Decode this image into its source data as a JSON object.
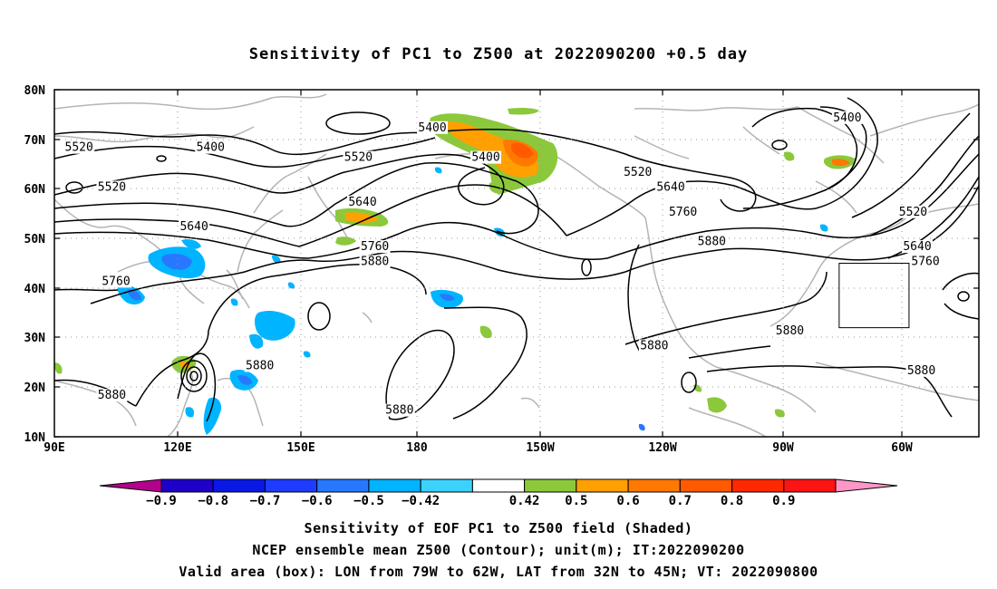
{
  "title": "Sensitivity of PC1 to Z500 at 2022090200 +0.5 day",
  "map": {
    "lat_ticks": [
      "80N",
      "70N",
      "60N",
      "50N",
      "40N",
      "30N",
      "20N",
      "10N"
    ],
    "lon_ticks": [
      "90E",
      "120E",
      "150E",
      "180",
      "150W",
      "120W",
      "90W",
      "60W"
    ],
    "lon_range": [
      90,
      315
    ],
    "lat_range": [
      10,
      80
    ],
    "contour_labels": [
      {
        "text": "5520",
        "lon": 96,
        "lat": 68
      },
      {
        "text": "5400",
        "lon": 128,
        "lat": 68
      },
      {
        "text": "5400",
        "lon": 182,
        "lat": 72
      },
      {
        "text": "5400",
        "lon": 195,
        "lat": 66
      },
      {
        "text": "5400",
        "lon": 283,
        "lat": 74
      },
      {
        "text": "5520",
        "lon": 104,
        "lat": 60
      },
      {
        "text": "5520",
        "lon": 164,
        "lat": 66
      },
      {
        "text": "5520",
        "lon": 232,
        "lat": 63
      },
      {
        "text": "5520",
        "lon": 299,
        "lat": 55
      },
      {
        "text": "5640",
        "lon": 124,
        "lat": 52
      },
      {
        "text": "5640",
        "lon": 165,
        "lat": 57
      },
      {
        "text": "5640",
        "lon": 240,
        "lat": 60
      },
      {
        "text": "5640",
        "lon": 300,
        "lat": 48
      },
      {
        "text": "5760",
        "lon": 105,
        "lat": 41
      },
      {
        "text": "5760",
        "lon": 168,
        "lat": 48
      },
      {
        "text": "5760",
        "lon": 243,
        "lat": 55
      },
      {
        "text": "5760",
        "lon": 302,
        "lat": 45
      },
      {
        "text": "5880",
        "lon": 168,
        "lat": 45
      },
      {
        "text": "5880",
        "lon": 250,
        "lat": 49
      },
      {
        "text": "5880",
        "lon": 236,
        "lat": 28
      },
      {
        "text": "5880",
        "lon": 174,
        "lat": 15
      },
      {
        "text": "5880",
        "lon": 104,
        "lat": 18
      },
      {
        "text": "5880",
        "lon": 140,
        "lat": 24
      },
      {
        "text": "5880",
        "lon": 269,
        "lat": 31
      },
      {
        "text": "5880",
        "lon": 301,
        "lat": 23
      }
    ],
    "valid_box": {
      "lon_min": 281,
      "lon_max": 298,
      "lat_min": 32,
      "lat_max": 45
    },
    "shading_colors": {
      "neg_0.9": "#1e00c8",
      "neg_0.8": "#0a18e6",
      "neg_0.7": "#1e3cff",
      "neg_0.6": "#2878ff",
      "neg_0.5": "#00b4ff",
      "neg_0.42": "#3cd2ff",
      "pos_0.42": "#8cc83c",
      "pos_0.5": "#ffa000",
      "pos_0.6": "#ff7800",
      "pos_0.7": "#ff5a00",
      "pos_0.8": "#ff2800",
      "pos_0.9": "#ff1414"
    }
  },
  "colorbar": {
    "labels": [
      "−0.9",
      "−0.8",
      "−0.7",
      "−0.6",
      "−0.5",
      "−0.42",
      "0.42",
      "0.5",
      "0.6",
      "0.7",
      "0.8",
      "0.9"
    ],
    "colors": [
      "#b4008c",
      "#1e00c8",
      "#0a18e6",
      "#1e3cff",
      "#2878ff",
      "#00b4ff",
      "#3cd2ff",
      "#ffffff",
      "#8cc83c",
      "#ffa000",
      "#ff7800",
      "#ff5a00",
      "#ff2800",
      "#ff1414",
      "#ff96c8"
    ]
  },
  "caption": {
    "line1": "Sensitivity of EOF PC1 to Z500 field (Shaded)",
    "line2": "NCEP ensemble mean Z500 (Contour); unit(m); IT:2022090200",
    "line3": "Valid area (box): LON from 79W to 62W, LAT from 32N to 45N; VT: 2022090800"
  }
}
